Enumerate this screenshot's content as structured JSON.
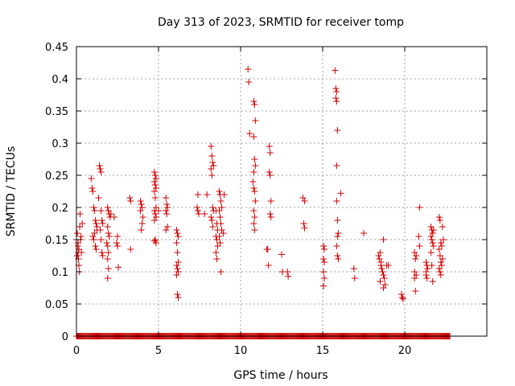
{
  "chart_data": {
    "type": "scatter",
    "title": "Day 313 of 2023, SRMTID for receiver tomp",
    "xlabel": "GPS time / hours",
    "ylabel": "SRMTID / TECUs",
    "xlim": [
      0,
      25
    ],
    "ylim": [
      0,
      0.45
    ],
    "xticks": [
      0,
      5,
      10,
      15,
      20
    ],
    "xtick_labels": [
      "0",
      "5",
      "10",
      "15",
      "20"
    ],
    "yticks": [
      0,
      0.05,
      0.1,
      0.15,
      0.2,
      0.25,
      0.3,
      0.35,
      0.4,
      0.45
    ],
    "ytick_labels": [
      "0",
      "0.05",
      "0.1",
      "0.15",
      "0.2",
      "0.25",
      "0.3",
      "0.35",
      "0.4",
      "0.45"
    ],
    "grid": true,
    "marker": "plus",
    "series_color": "#d00000",
    "zero_baseline_range": [
      0,
      22.8
    ],
    "points": [
      [
        0.0,
        0.15
      ],
      [
        0.05,
        0.16
      ],
      [
        0.08,
        0.14
      ],
      [
        0.1,
        0.13
      ],
      [
        0.12,
        0.12
      ],
      [
        0.15,
        0.11
      ],
      [
        0.18,
        0.1
      ],
      [
        0.2,
        0.17
      ],
      [
        0.22,
        0.19
      ],
      [
        0.25,
        0.15
      ],
      [
        0.28,
        0.155
      ],
      [
        0.3,
        0.13
      ],
      [
        0.1,
        0.145
      ],
      [
        0.15,
        0.135
      ],
      [
        0.05,
        0.125
      ],
      [
        0.35,
        0.175
      ],
      [
        0.9,
        0.245
      ],
      [
        0.95,
        0.23
      ],
      [
        1.0,
        0.225
      ],
      [
        1.05,
        0.2
      ],
      [
        1.1,
        0.195
      ],
      [
        1.15,
        0.18
      ],
      [
        1.2,
        0.175
      ],
      [
        1.25,
        0.165
      ],
      [
        1.0,
        0.155
      ],
      [
        1.05,
        0.15
      ],
      [
        1.1,
        0.16
      ],
      [
        1.15,
        0.14
      ],
      [
        1.2,
        0.135
      ],
      [
        1.25,
        0.17
      ],
      [
        1.4,
        0.265
      ],
      [
        1.45,
        0.26
      ],
      [
        1.5,
        0.255
      ],
      [
        1.35,
        0.215
      ],
      [
        1.5,
        0.195
      ],
      [
        1.55,
        0.18
      ],
      [
        1.6,
        0.175
      ],
      [
        1.45,
        0.165
      ],
      [
        1.5,
        0.15
      ],
      [
        1.55,
        0.13
      ],
      [
        1.6,
        0.125
      ],
      [
        1.9,
        0.2
      ],
      [
        1.95,
        0.195
      ],
      [
        2.0,
        0.19
      ],
      [
        2.05,
        0.185
      ],
      [
        1.9,
        0.17
      ],
      [
        1.95,
        0.16
      ],
      [
        2.0,
        0.155
      ],
      [
        1.85,
        0.145
      ],
      [
        1.9,
        0.14
      ],
      [
        1.95,
        0.13
      ],
      [
        1.9,
        0.12
      ],
      [
        1.95,
        0.105
      ],
      [
        1.9,
        0.09
      ],
      [
        2.1,
        0.19
      ],
      [
        2.3,
        0.185
      ],
      [
        2.5,
        0.155
      ],
      [
        2.45,
        0.145
      ],
      [
        2.5,
        0.14
      ],
      [
        2.55,
        0.107
      ],
      [
        3.25,
        0.215
      ],
      [
        3.3,
        0.21
      ],
      [
        3.3,
        0.135
      ],
      [
        3.9,
        0.21
      ],
      [
        3.95,
        0.205
      ],
      [
        4.0,
        0.2
      ],
      [
        3.9,
        0.195
      ],
      [
        4.05,
        0.185
      ],
      [
        4.0,
        0.175
      ],
      [
        3.95,
        0.165
      ],
      [
        4.75,
        0.255
      ],
      [
        4.8,
        0.25
      ],
      [
        4.85,
        0.245
      ],
      [
        4.75,
        0.24
      ],
      [
        4.8,
        0.235
      ],
      [
        4.85,
        0.23
      ],
      [
        4.75,
        0.225
      ],
      [
        4.8,
        0.215
      ],
      [
        4.85,
        0.2
      ],
      [
        4.75,
        0.195
      ],
      [
        4.8,
        0.19
      ],
      [
        4.85,
        0.185
      ],
      [
        4.75,
        0.18
      ],
      [
        4.8,
        0.15
      ],
      [
        4.85,
        0.145
      ],
      [
        4.75,
        0.148
      ],
      [
        5.0,
        0.195
      ],
      [
        5.45,
        0.215
      ],
      [
        5.5,
        0.205
      ],
      [
        5.55,
        0.2
      ],
      [
        5.45,
        0.195
      ],
      [
        5.5,
        0.19
      ],
      [
        5.55,
        0.17
      ],
      [
        5.45,
        0.165
      ],
      [
        6.1,
        0.165
      ],
      [
        6.15,
        0.16
      ],
      [
        6.2,
        0.155
      ],
      [
        6.1,
        0.145
      ],
      [
        6.15,
        0.13
      ],
      [
        6.2,
        0.115
      ],
      [
        6.1,
        0.11
      ],
      [
        6.15,
        0.105
      ],
      [
        6.2,
        0.1
      ],
      [
        6.1,
        0.095
      ],
      [
        6.15,
        0.065
      ],
      [
        6.2,
        0.06
      ],
      [
        7.4,
        0.22
      ],
      [
        7.35,
        0.2
      ],
      [
        7.4,
        0.195
      ],
      [
        7.45,
        0.19
      ],
      [
        7.8,
        0.19
      ],
      [
        7.95,
        0.22
      ],
      [
        8.2,
        0.295
      ],
      [
        8.25,
        0.28
      ],
      [
        8.3,
        0.27
      ],
      [
        8.35,
        0.265
      ],
      [
        8.2,
        0.26
      ],
      [
        8.25,
        0.25
      ],
      [
        8.3,
        0.2
      ],
      [
        8.35,
        0.195
      ],
      [
        8.2,
        0.185
      ],
      [
        8.25,
        0.18
      ],
      [
        8.3,
        0.17
      ],
      [
        8.5,
        0.195
      ],
      [
        8.55,
        0.175
      ],
      [
        8.6,
        0.165
      ],
      [
        8.5,
        0.155
      ],
      [
        8.55,
        0.15
      ],
      [
        8.6,
        0.14
      ],
      [
        8.5,
        0.13
      ],
      [
        8.55,
        0.12
      ],
      [
        8.7,
        0.225
      ],
      [
        8.75,
        0.22
      ],
      [
        8.8,
        0.21
      ],
      [
        8.85,
        0.2
      ],
      [
        8.7,
        0.195
      ],
      [
        8.75,
        0.185
      ],
      [
        8.8,
        0.175
      ],
      [
        8.85,
        0.165
      ],
      [
        8.7,
        0.155
      ],
      [
        8.75,
        0.145
      ],
      [
        8.8,
        0.1
      ],
      [
        9.0,
        0.22
      ],
      [
        8.95,
        0.16
      ],
      [
        10.45,
        0.415
      ],
      [
        10.5,
        0.395
      ],
      [
        10.55,
        0.315
      ],
      [
        10.8,
        0.365
      ],
      [
        10.85,
        0.36
      ],
      [
        10.9,
        0.335
      ],
      [
        10.8,
        0.31
      ],
      [
        10.85,
        0.275
      ],
      [
        10.9,
        0.265
      ],
      [
        10.8,
        0.255
      ],
      [
        10.75,
        0.24
      ],
      [
        10.8,
        0.23
      ],
      [
        10.85,
        0.225
      ],
      [
        10.9,
        0.21
      ],
      [
        10.8,
        0.195
      ],
      [
        10.85,
        0.185
      ],
      [
        10.8,
        0.175
      ],
      [
        10.85,
        0.165
      ],
      [
        11.75,
        0.295
      ],
      [
        11.8,
        0.285
      ],
      [
        11.75,
        0.255
      ],
      [
        11.8,
        0.25
      ],
      [
        11.85,
        0.21
      ],
      [
        11.8,
        0.19
      ],
      [
        11.85,
        0.185
      ],
      [
        11.6,
        0.135
      ],
      [
        11.65,
        0.135
      ],
      [
        11.7,
        0.11
      ],
      [
        12.5,
        0.127
      ],
      [
        12.55,
        0.1
      ],
      [
        12.85,
        0.1
      ],
      [
        12.9,
        0.093
      ],
      [
        13.8,
        0.215
      ],
      [
        13.9,
        0.21
      ],
      [
        13.85,
        0.175
      ],
      [
        13.9,
        0.168
      ],
      [
        15.05,
        0.14
      ],
      [
        15.1,
        0.135
      ],
      [
        15.05,
        0.12
      ],
      [
        15.1,
        0.115
      ],
      [
        15.05,
        0.1
      ],
      [
        15.1,
        0.09
      ],
      [
        15.05,
        0.078
      ],
      [
        15.75,
        0.413
      ],
      [
        15.8,
        0.385
      ],
      [
        15.85,
        0.38
      ],
      [
        15.8,
        0.37
      ],
      [
        15.85,
        0.365
      ],
      [
        15.9,
        0.32
      ],
      [
        15.85,
        0.265
      ],
      [
        16.1,
        0.222
      ],
      [
        15.85,
        0.21
      ],
      [
        15.9,
        0.18
      ],
      [
        15.95,
        0.16
      ],
      [
        15.9,
        0.155
      ],
      [
        15.85,
        0.14
      ],
      [
        15.9,
        0.125
      ],
      [
        15.95,
        0.12
      ],
      [
        16.9,
        0.105
      ],
      [
        16.95,
        0.09
      ],
      [
        17.5,
        0.16
      ],
      [
        18.4,
        0.125
      ],
      [
        18.45,
        0.12
      ],
      [
        18.5,
        0.13
      ],
      [
        18.7,
        0.15
      ],
      [
        18.55,
        0.11
      ],
      [
        18.6,
        0.105
      ],
      [
        18.65,
        0.1
      ],
      [
        18.7,
        0.095
      ],
      [
        18.75,
        0.09
      ],
      [
        18.8,
        0.08
      ],
      [
        18.7,
        0.075
      ],
      [
        18.5,
        0.085
      ],
      [
        18.55,
        0.115
      ],
      [
        18.9,
        0.11
      ],
      [
        19.0,
        0.11
      ],
      [
        19.8,
        0.065
      ],
      [
        19.85,
        0.06
      ],
      [
        19.9,
        0.058
      ],
      [
        20.6,
        0.13
      ],
      [
        20.65,
        0.12
      ],
      [
        20.7,
        0.125
      ],
      [
        20.6,
        0.1
      ],
      [
        20.7,
        0.095
      ],
      [
        20.6,
        0.09
      ],
      [
        20.65,
        0.07
      ],
      [
        20.9,
        0.2
      ],
      [
        20.85,
        0.155
      ],
      [
        20.9,
        0.14
      ],
      [
        21.3,
        0.115
      ],
      [
        21.35,
        0.11
      ],
      [
        21.4,
        0.105
      ],
      [
        21.3,
        0.095
      ],
      [
        21.35,
        0.09
      ],
      [
        21.3,
        0.1
      ],
      [
        21.6,
        0.17
      ],
      [
        21.65,
        0.165
      ],
      [
        21.7,
        0.16
      ],
      [
        21.6,
        0.155
      ],
      [
        21.65,
        0.15
      ],
      [
        21.7,
        0.145
      ],
      [
        21.75,
        0.14
      ],
      [
        21.6,
        0.13
      ],
      [
        21.65,
        0.11
      ],
      [
        21.7,
        0.085
      ],
      [
        21.75,
        0.165
      ],
      [
        22.1,
        0.185
      ],
      [
        22.15,
        0.18
      ],
      [
        22.2,
        0.145
      ],
      [
        22.25,
        0.14
      ],
      [
        22.1,
        0.135
      ],
      [
        22.15,
        0.125
      ],
      [
        22.2,
        0.115
      ],
      [
        22.25,
        0.11
      ],
      [
        22.1,
        0.105
      ],
      [
        22.15,
        0.1
      ],
      [
        22.2,
        0.095
      ],
      [
        22.3,
        0.17
      ],
      [
        22.35,
        0.15
      ],
      [
        22.3,
        0.12
      ]
    ]
  }
}
